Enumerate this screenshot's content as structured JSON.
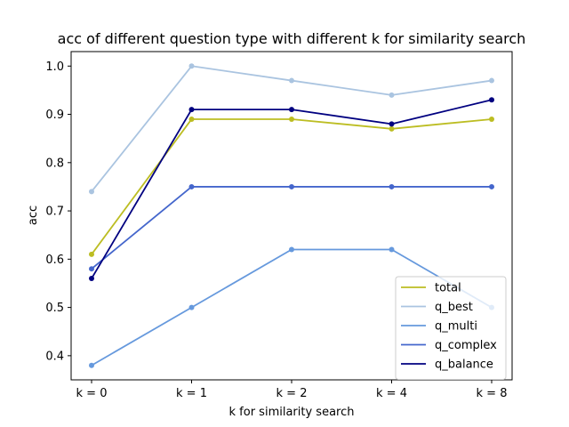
{
  "chart_data": {
    "type": "line",
    "title": "acc of different question type with different k for similarity search",
    "xlabel": "k for similarity search",
    "ylabel": "acc",
    "categories": [
      "k = 0",
      "k = 1",
      "k = 2",
      "k = 4",
      "k = 8"
    ],
    "ylim": [
      0.35,
      1.03
    ],
    "yticks": [
      "0.4",
      "0.5",
      "0.6",
      "0.7",
      "0.8",
      "0.9",
      "1.0"
    ],
    "grid": false,
    "legend_position": "bottom-right",
    "series": [
      {
        "name": "total",
        "color": "#bcbd22",
        "values": [
          0.61,
          0.89,
          0.89,
          0.87,
          0.89
        ]
      },
      {
        "name": "q_best",
        "color": "#aac4e0",
        "values": [
          0.74,
          1.0,
          0.97,
          0.94,
          0.97
        ]
      },
      {
        "name": "q_multi",
        "color": "#6699dd",
        "values": [
          0.38,
          0.5,
          0.62,
          0.62,
          0.5
        ]
      },
      {
        "name": "q_complex",
        "color": "#4466cc",
        "values": [
          0.58,
          0.75,
          0.75,
          0.75,
          0.75
        ]
      },
      {
        "name": "q_balance",
        "color": "#000080",
        "values": [
          0.56,
          0.91,
          0.91,
          0.88,
          0.93
        ]
      }
    ]
  }
}
